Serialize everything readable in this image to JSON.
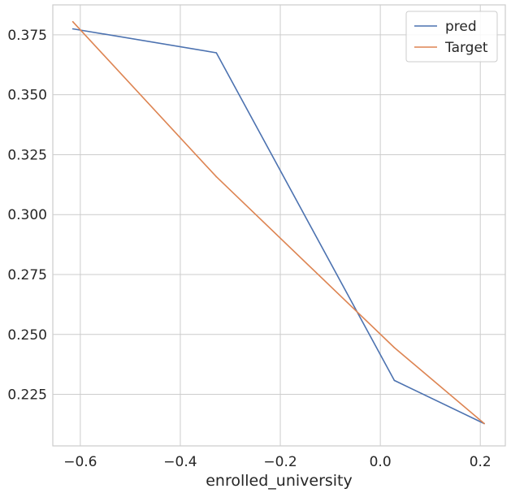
{
  "chart_data": {
    "type": "line",
    "xlabel": "enrolled_university",
    "ylabel": "",
    "title": "",
    "xlim": [
      -0.655,
      0.25
    ],
    "ylim": [
      0.2035,
      0.3875
    ],
    "xticks": [
      -0.6,
      -0.4,
      -0.2,
      0.0,
      0.2
    ],
    "xtick_labels": [
      "−0.6",
      "−0.4",
      "−0.2",
      "0.0",
      "0.2"
    ],
    "yticks": [
      0.225,
      0.25,
      0.275,
      0.3,
      0.325,
      0.35,
      0.375
    ],
    "ytick_labels": [
      "0.225",
      "0.250",
      "0.275",
      "0.300",
      "0.325",
      "0.350",
      "0.375"
    ],
    "grid": true,
    "legend_position": "top-right",
    "series": [
      {
        "name": "pred",
        "color": "#4c72b0",
        "points": [
          [
            -0.615,
            0.3775
          ],
          [
            -0.328,
            0.3675
          ],
          [
            0.028,
            0.2308
          ],
          [
            0.208,
            0.2128
          ]
        ]
      },
      {
        "name": "Target",
        "color": "#dd8452",
        "points": [
          [
            -0.615,
            0.3805
          ],
          [
            -0.328,
            0.3158
          ],
          [
            0.028,
            0.2445
          ],
          [
            0.208,
            0.2128
          ]
        ]
      }
    ]
  }
}
